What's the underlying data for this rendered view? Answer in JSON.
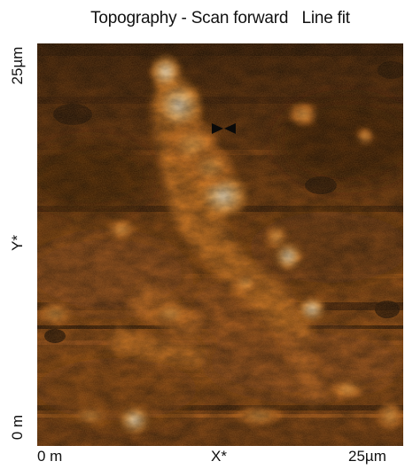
{
  "title": "Topography - Scan forward   Line fit",
  "axes": {
    "y_top_label": "25µm",
    "y_axis_label": "Y*",
    "y_bottom_label": "0 m",
    "x_left_label": "0 m",
    "x_axis_label": "X*",
    "x_right_label": "25µm"
  },
  "colormap": {
    "dark": "#3a1a03",
    "mid": "#9a4e0f",
    "bright": "#e89a3c",
    "highlight": "#fff4dc"
  },
  "marker_icon": "bowtie-marker-icon"
}
